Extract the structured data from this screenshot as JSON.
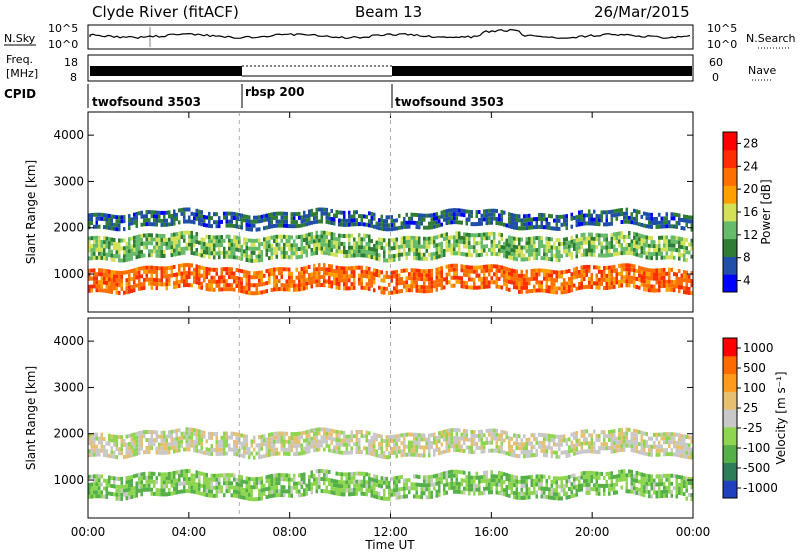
{
  "header": {
    "title": "Clyde River (fitACF)",
    "beam": "Beam 13",
    "date": "26/Mar/2015"
  },
  "side_labels": {
    "nsky": "N.Sky",
    "nsearch": "N.Search",
    "freq": "Freq.",
    "freq_unit": "[MHz]",
    "nave": "Nave",
    "cpid": "CPID"
  },
  "noise_panel": {
    "left_ticks": [
      "10^5",
      "10^0"
    ],
    "right_ticks": [
      "10^5",
      "10^0"
    ]
  },
  "freq_panel": {
    "left_ticks": [
      "18",
      "8"
    ],
    "right_ticks": [
      "60",
      "0"
    ]
  },
  "cpid_segments": [
    {
      "label": "twofsound 3503",
      "start_h": 0,
      "end_h": 6
    },
    {
      "label": "rbsp 200",
      "start_h": 6,
      "end_h": 12
    },
    {
      "label": "twofsound 3503",
      "start_h": 12,
      "end_h": 24
    }
  ],
  "colors": {
    "power_scale": [
      "#0000ff",
      "#1f4fa8",
      "#2e7d32",
      "#66bb6a",
      "#d4e157",
      "#ffa000",
      "#ff6f00",
      "#ff2d00",
      "#ff0000"
    ],
    "velocity_scale": [
      "#2040c0",
      "#2e7d5a",
      "#55b04a",
      "#8fd650",
      "#c8c8c8",
      "#e6c070",
      "#ff9a1a",
      "#ff6a00",
      "#ff0000"
    ]
  },
  "chart_data": [
    {
      "type": "heatmap",
      "title": "Power",
      "xlabel": "",
      "ylabel": "Slant Range [km]",
      "xlim": [
        0,
        24
      ],
      "ylim": [
        180,
        4500
      ],
      "x_ticks": [
        "00:00",
        "04:00",
        "08:00",
        "12:00",
        "16:00",
        "20:00",
        "00:00"
      ],
      "y_ticks": [
        1000,
        2000,
        3000,
        4000
      ],
      "colorbar": {
        "label": "Power [dB]",
        "ticks": [
          "28",
          "24",
          "20",
          "16",
          "12",
          "8",
          "4"
        ],
        "range": [
          0,
          30
        ]
      },
      "bands": [
        {
          "name": "",
          "x_start": 0,
          "x_end": 24,
          "range_center": 900,
          "range_width": 500,
          "value": 22
        },
        {
          "name": "",
          "x_start": 0,
          "x_end": 24,
          "range_center": 1600,
          "range_width": 500,
          "value": 12
        },
        {
          "name": "",
          "x_start": 0,
          "x_end": 24,
          "range_center": 2200,
          "range_width": 300,
          "value": 6
        }
      ]
    },
    {
      "type": "heatmap",
      "title": "Velocity",
      "xlabel": "Time UT",
      "ylabel": "Slant Range [km]",
      "xlim": [
        0,
        24
      ],
      "ylim": [
        180,
        4500
      ],
      "x_ticks": [
        "00:00",
        "04:00",
        "08:00",
        "12:00",
        "16:00",
        "20:00",
        "00:00"
      ],
      "y_ticks": [
        1000,
        2000,
        3000,
        4000
      ],
      "colorbar": {
        "label": "Velocity [m s⁻¹]",
        "ticks": [
          "1000",
          "500",
          "100",
          "25",
          "-25",
          "-100",
          "-500",
          "-1000"
        ],
        "range": [
          -1000,
          1000
        ]
      },
      "bands": [
        {
          "name": "",
          "x_start": 0,
          "x_end": 24,
          "range_center": 900,
          "range_width": 500,
          "value": -300
        },
        {
          "name": "",
          "x_start": 0,
          "x_end": 24,
          "range_center": 1800,
          "range_width": 500,
          "value": 0
        }
      ]
    }
  ]
}
